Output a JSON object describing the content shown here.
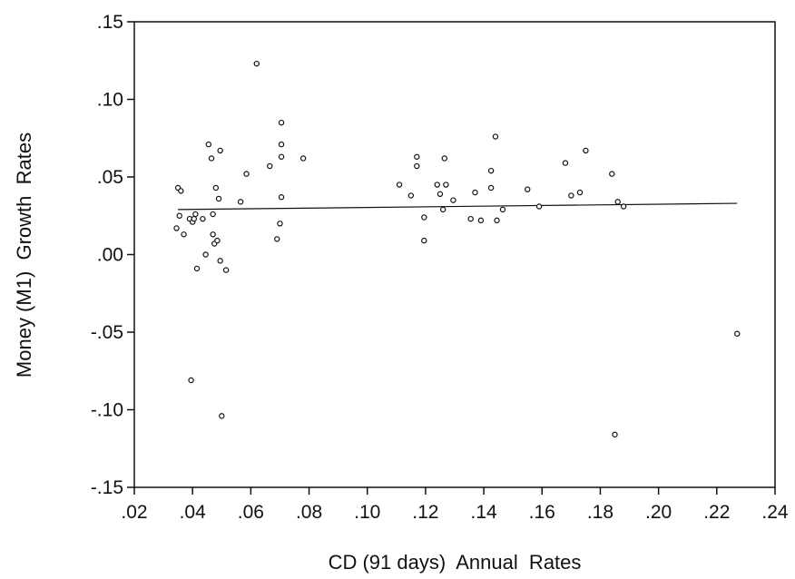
{
  "chart_data": {
    "type": "scatter",
    "title": "",
    "xlabel": "CD (91 days)  Annual  Rates",
    "ylabel": "Money (M1)  Growth  Rates",
    "xlim": [
      0.02,
      0.24
    ],
    "ylim": [
      -0.15,
      0.15
    ],
    "x_ticks": [
      0.02,
      0.04,
      0.06,
      0.08,
      0.1,
      0.12,
      0.14,
      0.16,
      0.18,
      0.2,
      0.22,
      0.24
    ],
    "x_tick_labels": [
      ".02",
      ".04",
      ".06",
      ".08",
      ".10",
      ".12",
      ".14",
      ".16",
      ".18",
      ".20",
      ".22",
      ".24"
    ],
    "y_ticks": [
      0.15,
      0.1,
      0.05,
      0.0,
      -0.05,
      -0.1,
      -0.15
    ],
    "y_tick_labels": [
      ".15",
      ".10",
      ".05",
      ".00",
      "-.05",
      "-.10",
      "-.15"
    ],
    "grid": false,
    "legend": "none",
    "marker_color": "#111111",
    "line_color": "#111111",
    "fit_line": {
      "x": [
        0.035,
        0.227
      ],
      "y": [
        0.029,
        0.033
      ]
    },
    "points": [
      [
        0.0345,
        0.017
      ],
      [
        0.035,
        0.043
      ],
      [
        0.0355,
        0.025
      ],
      [
        0.036,
        0.041
      ],
      [
        0.037,
        0.013
      ],
      [
        0.039,
        0.023
      ],
      [
        0.0395,
        -0.081
      ],
      [
        0.04,
        0.021
      ],
      [
        0.0405,
        0.023
      ],
      [
        0.041,
        0.026
      ],
      [
        0.0415,
        -0.009
      ],
      [
        0.0435,
        0.023
      ],
      [
        0.0445,
        0.0
      ],
      [
        0.0455,
        0.071
      ],
      [
        0.0465,
        0.062
      ],
      [
        0.047,
        0.026
      ],
      [
        0.047,
        0.013
      ],
      [
        0.0475,
        0.007
      ],
      [
        0.048,
        0.043
      ],
      [
        0.0485,
        0.009
      ],
      [
        0.049,
        0.036
      ],
      [
        0.0495,
        0.067
      ],
      [
        0.0495,
        -0.004
      ],
      [
        0.05,
        -0.104
      ],
      [
        0.0515,
        -0.01
      ],
      [
        0.0565,
        0.034
      ],
      [
        0.0585,
        0.052
      ],
      [
        0.062,
        0.123
      ],
      [
        0.0665,
        0.057
      ],
      [
        0.069,
        0.01
      ],
      [
        0.07,
        0.02
      ],
      [
        0.0705,
        0.085
      ],
      [
        0.0705,
        0.071
      ],
      [
        0.0705,
        0.063
      ],
      [
        0.0705,
        0.037
      ],
      [
        0.078,
        0.062
      ],
      [
        0.111,
        0.045
      ],
      [
        0.115,
        0.038
      ],
      [
        0.117,
        0.063
      ],
      [
        0.117,
        0.057
      ],
      [
        0.1195,
        0.024
      ],
      [
        0.1195,
        0.009
      ],
      [
        0.124,
        0.045
      ],
      [
        0.125,
        0.039
      ],
      [
        0.126,
        0.029
      ],
      [
        0.1265,
        0.062
      ],
      [
        0.127,
        0.045
      ],
      [
        0.1295,
        0.035
      ],
      [
        0.1355,
        0.023
      ],
      [
        0.137,
        0.04
      ],
      [
        0.139,
        0.022
      ],
      [
        0.1425,
        0.054
      ],
      [
        0.1425,
        0.043
      ],
      [
        0.144,
        0.076
      ],
      [
        0.1445,
        0.022
      ],
      [
        0.1465,
        0.029
      ],
      [
        0.155,
        0.042
      ],
      [
        0.159,
        0.031
      ],
      [
        0.168,
        0.059
      ],
      [
        0.17,
        0.038
      ],
      [
        0.173,
        0.04
      ],
      [
        0.175,
        0.067
      ],
      [
        0.184,
        0.052
      ],
      [
        0.185,
        -0.116
      ],
      [
        0.186,
        0.034
      ],
      [
        0.188,
        0.031
      ],
      [
        0.227,
        -0.051
      ]
    ]
  }
}
